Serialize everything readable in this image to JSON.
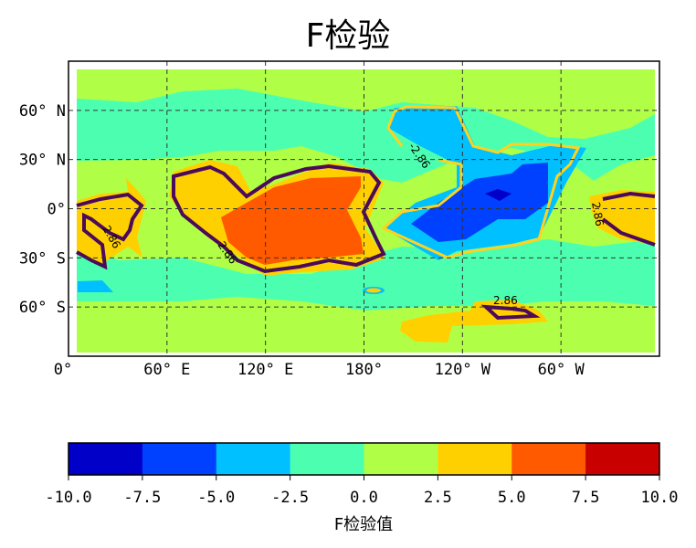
{
  "chart_data": {
    "type": "heatmap",
    "subtype": "filled-contour-map",
    "title": "F检验",
    "projection": "equirectangular",
    "lon_ticks": [
      "0°",
      "60° E",
      "120° E",
      "180°",
      "120° W",
      "60° W"
    ],
    "lat_ticks": [
      "60° N",
      "30° N",
      "0°",
      "30° S",
      "60° S"
    ],
    "grid": true,
    "levels": [
      -10.0,
      -7.5,
      -5.0,
      -2.5,
      0.0,
      2.5,
      5.0,
      7.5,
      10.0
    ],
    "level_colors": [
      "#0000c8",
      "#0040ff",
      "#00c0ff",
      "#4cffb0",
      "#b0ff46",
      "#ffd000",
      "#ff5a00",
      "#c80000"
    ],
    "contours": [
      {
        "level": 2.86,
        "label": "2.86",
        "color": "#4b0a5a"
      },
      {
        "level": -2.86,
        "label": "-2.86",
        "color": "#ffd21e"
      }
    ],
    "colorbar": {
      "label": "F检验值",
      "tick_labels": [
        "-10.0",
        "-7.5",
        "-5.0",
        "-2.5",
        "0.0",
        "2.5",
        "5.0",
        "7.5",
        "10.0"
      ],
      "range": [
        -10,
        10
      ],
      "orientation": "horizontal",
      "placement": "bottom"
    }
  }
}
